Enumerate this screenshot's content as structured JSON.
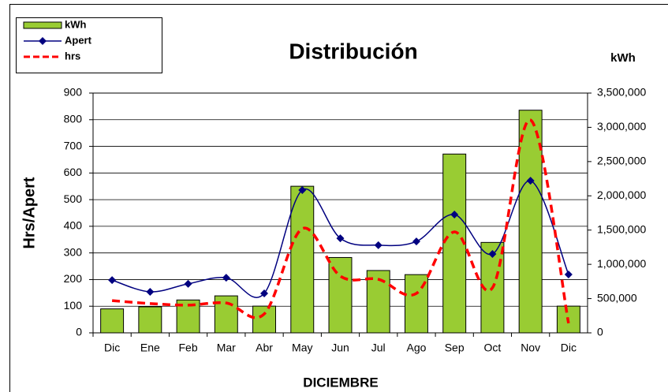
{
  "chart_data": {
    "type": "bar",
    "title": "Distribución",
    "xlabel": "DICIEMBRE",
    "ylabel": "Hrs/Apert",
    "y2label": "kWh",
    "categories": [
      "Dic",
      "Ene",
      "Feb",
      "Mar",
      "Abr",
      "May",
      "Jun",
      "Jul",
      "Ago",
      "Sep",
      "Oct",
      "Nov",
      "Dic"
    ],
    "series": [
      {
        "name": "kWh",
        "type": "bar",
        "axis": "y2",
        "color": "#99cc33",
        "values": [
          350000,
          380000,
          480000,
          540000,
          390000,
          2140000,
          1100000,
          910000,
          850000,
          2610000,
          1320000,
          3250000,
          390000
        ]
      },
      {
        "name": "Apert",
        "type": "line",
        "color": "#000080",
        "marker": "diamond",
        "smooth": true,
        "values": [
          198,
          154,
          184,
          207,
          148,
          536,
          355,
          329,
          343,
          444,
          296,
          571,
          219
        ]
      },
      {
        "name": "hrs",
        "type": "line",
        "color": "#ff0000",
        "style": "dashed",
        "smooth": true,
        "values": [
          121,
          110,
          104,
          112,
          71,
          391,
          213,
          201,
          148,
          379,
          169,
          799,
          36
        ]
      }
    ],
    "ylim": [
      0,
      900
    ],
    "yticks": [
      0,
      100,
      200,
      300,
      400,
      500,
      600,
      700,
      800,
      900
    ],
    "y2lim": [
      0,
      3500000
    ],
    "y2ticks": [
      0,
      {
        "value": 500000,
        "label": "500,000"
      },
      {
        "value": 1000000,
        "label": "1,000,000"
      },
      {
        "value": 1500000,
        "label": "1,500,000"
      },
      {
        "value": 2000000,
        "label": "2,000,000"
      },
      {
        "value": 2500000,
        "label": "2,500,000"
      },
      {
        "value": 3000000,
        "label": "3,000,000"
      },
      {
        "value": 3500000,
        "label": "3,500,000"
      }
    ],
    "grid": true,
    "legend": "top-left"
  }
}
